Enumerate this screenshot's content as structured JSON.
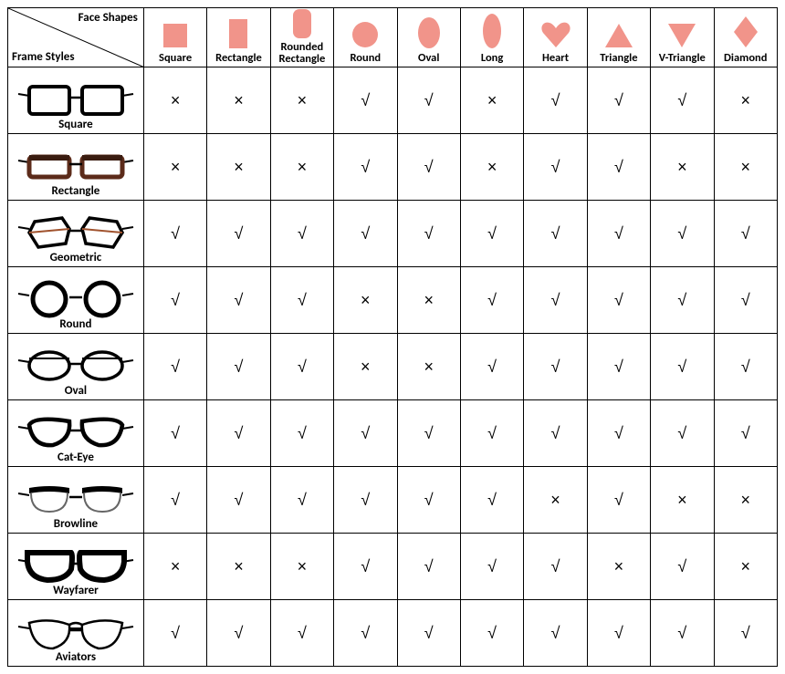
{
  "corner": {
    "top_label": "Face Shapes",
    "bottom_label": "Frame Styles"
  },
  "shape_color": "#f1948a",
  "check_mark": "√",
  "cross_mark": "×",
  "columns": [
    {
      "key": "square",
      "label": "Square",
      "shape": "square"
    },
    {
      "key": "rectangle",
      "label": "Rectangle",
      "shape": "rectangle"
    },
    {
      "key": "rounded_rectangle",
      "label": "Rounded Rectangle",
      "shape": "rounded-rect"
    },
    {
      "key": "round",
      "label": "Round",
      "shape": "circle"
    },
    {
      "key": "oval",
      "label": "Oval",
      "shape": "oval"
    },
    {
      "key": "long",
      "label": "Long",
      "shape": "long-oval"
    },
    {
      "key": "heart",
      "label": "Heart",
      "shape": "heart"
    },
    {
      "key": "triangle",
      "label": "Triangle",
      "shape": "triangle"
    },
    {
      "key": "vtriangle",
      "label": "V-Triangle",
      "shape": "v-triangle"
    },
    {
      "key": "diamond",
      "label": "Diamond",
      "shape": "diamond"
    }
  ],
  "rows": [
    {
      "key": "square",
      "label": "Square",
      "frame": "square",
      "values": [
        false,
        false,
        false,
        true,
        true,
        false,
        true,
        true,
        true,
        false
      ]
    },
    {
      "key": "rectangle",
      "label": "Rectangle",
      "frame": "rectangle",
      "values": [
        false,
        false,
        false,
        true,
        true,
        false,
        true,
        true,
        false,
        false
      ]
    },
    {
      "key": "geometric",
      "label": "Geometric",
      "frame": "geometric",
      "values": [
        true,
        true,
        true,
        true,
        true,
        true,
        true,
        true,
        true,
        true
      ]
    },
    {
      "key": "round",
      "label": "Round",
      "frame": "round",
      "values": [
        true,
        true,
        true,
        false,
        false,
        true,
        true,
        true,
        true,
        true
      ]
    },
    {
      "key": "oval",
      "label": "Oval",
      "frame": "oval",
      "values": [
        true,
        true,
        true,
        false,
        false,
        true,
        true,
        true,
        true,
        true
      ]
    },
    {
      "key": "cateye",
      "label": "Cat-Eye",
      "frame": "cateye",
      "values": [
        true,
        true,
        true,
        true,
        true,
        true,
        true,
        true,
        true,
        true
      ]
    },
    {
      "key": "browline",
      "label": "Browline",
      "frame": "browline",
      "values": [
        true,
        true,
        true,
        true,
        true,
        true,
        false,
        true,
        false,
        false
      ]
    },
    {
      "key": "wayfarer",
      "label": "Wayfarer",
      "frame": "wayfarer",
      "values": [
        false,
        false,
        false,
        true,
        true,
        true,
        true,
        false,
        true,
        false
      ]
    },
    {
      "key": "aviators",
      "label": "Aviators",
      "frame": "aviator",
      "values": [
        true,
        true,
        true,
        true,
        true,
        true,
        true,
        true,
        true,
        true
      ]
    }
  ]
}
